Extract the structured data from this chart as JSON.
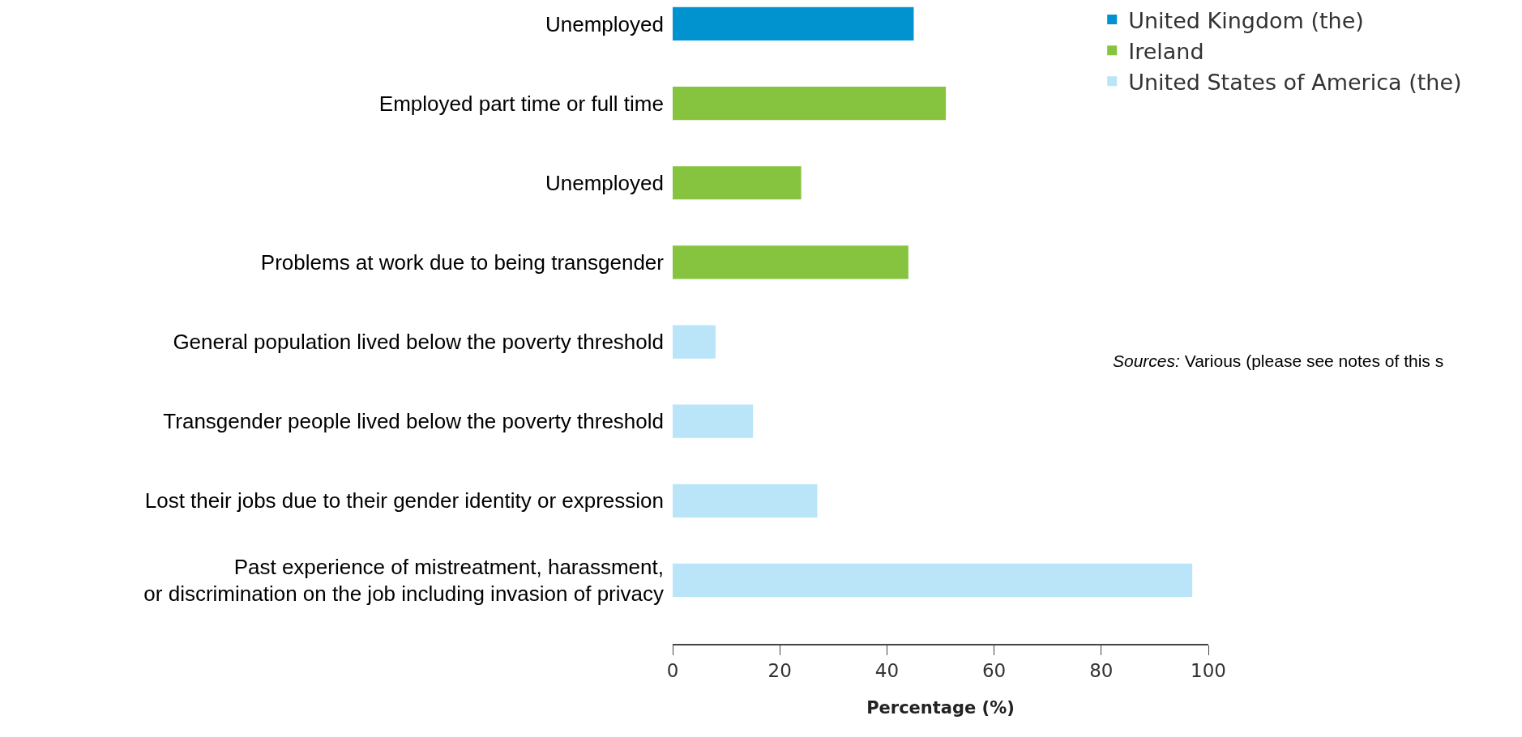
{
  "chart_data": {
    "type": "bar",
    "orientation": "horizontal",
    "xlabel": "Percentage (%)",
    "categories": [
      "Unemployed",
      "Employed part time or full time",
      "Unemployed",
      "Problems at work due to being transgender",
      "General population lived below the poverty threshold",
      "Transgender people lived below the poverty threshold",
      "Lost their jobs due to their gender identity or expression",
      "Past experience of mistreatment, harassment,\nor discrimination on the job including invasion of privacy"
    ],
    "series": [
      {
        "name": "United Kingdom (the)",
        "color": "#0093d0",
        "values": [
          45,
          null,
          null,
          null,
          null,
          null,
          null,
          null
        ]
      },
      {
        "name": "Ireland",
        "color": "#86c440",
        "values": [
          null,
          51,
          24,
          44,
          null,
          null,
          null,
          null
        ]
      },
      {
        "name": "United States of America (the)",
        "color": "#bae5f8",
        "values": [
          null,
          null,
          null,
          null,
          8,
          15,
          27,
          97
        ]
      }
    ],
    "xlim": [
      0,
      100
    ],
    "xticks": [
      0,
      20,
      40,
      60,
      80,
      100
    ],
    "grid": false,
    "legend": "top right",
    "annotations": [
      "Sources: Various (please see notes of this s"
    ]
  }
}
